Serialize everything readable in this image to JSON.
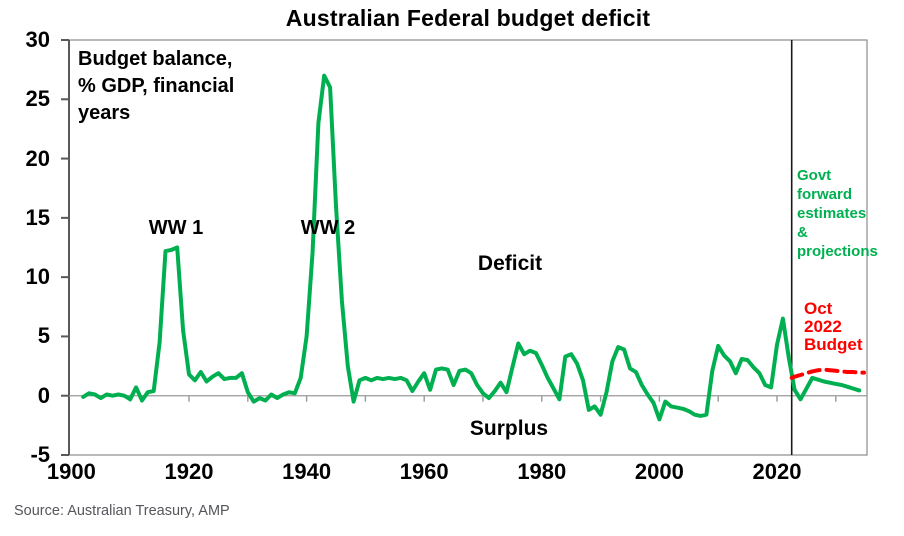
{
  "title": "Australian Federal budget deficit",
  "source": "Source: Australian Treasury, AMP",
  "colors": {
    "series_green": "#00B050",
    "series_red": "#FF0000",
    "divider_line": "#1a1a1a",
    "frame": "#8C8C8C",
    "axis_spine": "#595959",
    "zero_line": "#999999",
    "source_text": "#54565B"
  },
  "annotations": {
    "budget_note": "Budget balance,\n% GDP, financial\nyears",
    "ww1": "WW 1",
    "ww2": "WW 2",
    "deficit": "Deficit",
    "surplus": "Surplus",
    "govt_note": "Govt\nforward\nestimates\n&\nprojections",
    "oct_budget_note": "Oct\n2022\nBudget"
  },
  "chart_data": {
    "type": "line",
    "title": "Australian Federal budget deficit",
    "note": "Budget balance, % GDP, financial years",
    "xlim": [
      1897.8,
      2035.3
    ],
    "ylim": [
      -5,
      30
    ],
    "y_ticks": [
      30,
      25,
      20,
      15,
      10,
      5,
      0,
      -5
    ],
    "x_ticks": [
      1900,
      1920,
      1940,
      1960,
      1980,
      2000,
      2020
    ],
    "x_minor_ticks_on_zero_line": [
      1910,
      1920,
      1930,
      1940,
      1950,
      1960,
      1970,
      1980,
      1990,
      2000,
      2010,
      2020,
      2030
    ],
    "grid": "zero line only",
    "legend_position": "in-plot text annotations",
    "vline": {
      "x": 2022.5,
      "meaning": "start of Govt forward estimates & projections"
    },
    "series": [
      {
        "name": "Budget balance (actual, then govt forward estimates & projections)",
        "color": "#00B050",
        "line_style": "solid",
        "points": [
          [
            1902,
            -0.1
          ],
          [
            1903,
            0.2
          ],
          [
            1904,
            0.1
          ],
          [
            1905,
            -0.2
          ],
          [
            1906,
            0.1
          ],
          [
            1907,
            0.0
          ],
          [
            1908,
            0.1
          ],
          [
            1909,
            0.0
          ],
          [
            1910,
            -0.3
          ],
          [
            1911,
            0.7
          ],
          [
            1912,
            -0.4
          ],
          [
            1913,
            0.3
          ],
          [
            1914,
            0.4
          ],
          [
            1915,
            4.5
          ],
          [
            1916,
            12.2
          ],
          [
            1917,
            12.3
          ],
          [
            1918,
            12.5
          ],
          [
            1919,
            5.5
          ],
          [
            1920,
            1.8
          ],
          [
            1921,
            1.3
          ],
          [
            1922,
            2.0
          ],
          [
            1923,
            1.2
          ],
          [
            1924,
            1.6
          ],
          [
            1925,
            1.9
          ],
          [
            1926,
            1.4
          ],
          [
            1927,
            1.5
          ],
          [
            1928,
            1.5
          ],
          [
            1929,
            1.9
          ],
          [
            1930,
            0.3
          ],
          [
            1931,
            -0.5
          ],
          [
            1932,
            -0.2
          ],
          [
            1933,
            -0.4
          ],
          [
            1934,
            0.1
          ],
          [
            1935,
            -0.2
          ],
          [
            1936,
            0.1
          ],
          [
            1937,
            0.3
          ],
          [
            1938,
            0.2
          ],
          [
            1939,
            1.5
          ],
          [
            1940,
            5.0
          ],
          [
            1941,
            12.0
          ],
          [
            1942,
            23.0
          ],
          [
            1943,
            27.0
          ],
          [
            1944,
            26.0
          ],
          [
            1945,
            16.0
          ],
          [
            1946,
            8.0
          ],
          [
            1947,
            2.5
          ],
          [
            1948,
            -0.5
          ],
          [
            1949,
            1.3
          ],
          [
            1950,
            1.5
          ],
          [
            1951,
            1.3
          ],
          [
            1952,
            1.5
          ],
          [
            1953,
            1.4
          ],
          [
            1954,
            1.5
          ],
          [
            1955,
            1.4
          ],
          [
            1956,
            1.5
          ],
          [
            1957,
            1.3
          ],
          [
            1958,
            0.4
          ],
          [
            1959,
            1.2
          ],
          [
            1960,
            1.9
          ],
          [
            1961,
            0.5
          ],
          [
            1962,
            2.2
          ],
          [
            1963,
            2.3
          ],
          [
            1964,
            2.2
          ],
          [
            1965,
            0.9
          ],
          [
            1966,
            2.1
          ],
          [
            1967,
            2.2
          ],
          [
            1968,
            1.9
          ],
          [
            1969,
            0.9
          ],
          [
            1970,
            0.2
          ],
          [
            1971,
            -0.2
          ],
          [
            1972,
            0.4
          ],
          [
            1973,
            1.1
          ],
          [
            1974,
            0.3
          ],
          [
            1975,
            2.4
          ],
          [
            1976,
            4.4
          ],
          [
            1977,
            3.5
          ],
          [
            1978,
            3.8
          ],
          [
            1979,
            3.6
          ],
          [
            1980,
            2.6
          ],
          [
            1981,
            1.5
          ],
          [
            1982,
            0.6
          ],
          [
            1983,
            -0.3
          ],
          [
            1984,
            3.3
          ],
          [
            1985,
            3.5
          ],
          [
            1986,
            2.7
          ],
          [
            1987,
            1.3
          ],
          [
            1988,
            -1.2
          ],
          [
            1989,
            -0.9
          ],
          [
            1990,
            -1.6
          ],
          [
            1991,
            0.3
          ],
          [
            1992,
            2.9
          ],
          [
            1993,
            4.1
          ],
          [
            1994,
            3.9
          ],
          [
            1995,
            2.3
          ],
          [
            1996,
            2.0
          ],
          [
            1997,
            0.9
          ],
          [
            1998,
            0.1
          ],
          [
            1999,
            -0.6
          ],
          [
            2000,
            -2.0
          ],
          [
            2001,
            -0.5
          ],
          [
            2002,
            -0.9
          ],
          [
            2003,
            -1.0
          ],
          [
            2004,
            -1.1
          ],
          [
            2005,
            -1.3
          ],
          [
            2006,
            -1.6
          ],
          [
            2007,
            -1.7
          ],
          [
            2008,
            -1.6
          ],
          [
            2009,
            2.1
          ],
          [
            2010,
            4.2
          ],
          [
            2011,
            3.4
          ],
          [
            2012,
            2.9
          ],
          [
            2013,
            1.9
          ],
          [
            2014,
            3.1
          ],
          [
            2015,
            3.0
          ],
          [
            2016,
            2.4
          ],
          [
            2017,
            1.9
          ],
          [
            2018,
            0.9
          ],
          [
            2019,
            0.7
          ],
          [
            2020,
            4.3
          ],
          [
            2021,
            6.5
          ],
          [
            2022,
            3.2
          ],
          [
            2023,
            0.5
          ],
          [
            2024,
            -0.3
          ],
          [
            2025,
            0.6
          ],
          [
            2026,
            1.5
          ],
          [
            2027,
            1.35
          ],
          [
            2028,
            1.2
          ],
          [
            2029,
            1.1
          ],
          [
            2030,
            1.0
          ],
          [
            2031,
            0.9
          ],
          [
            2032,
            0.75
          ],
          [
            2033,
            0.6
          ],
          [
            2034,
            0.45
          ]
        ]
      },
      {
        "name": "Oct 2022 Budget",
        "color": "#FF0000",
        "line_style": "dashed",
        "points": [
          [
            2022.5,
            1.5
          ],
          [
            2023,
            1.6
          ],
          [
            2024,
            1.75
          ],
          [
            2025,
            1.9
          ],
          [
            2026,
            2.05
          ],
          [
            2027,
            2.15
          ],
          [
            2028,
            2.2
          ],
          [
            2029,
            2.15
          ],
          [
            2030,
            2.1
          ],
          [
            2031,
            2.05
          ],
          [
            2032,
            2.0
          ],
          [
            2033,
            2.0
          ],
          [
            2034,
            1.95
          ],
          [
            2034.8,
            1.95
          ]
        ]
      }
    ],
    "annotations": [
      {
        "text": "Budget balance, % GDP, financial years",
        "x": 1902,
        "y": 29,
        "color": "#000000"
      },
      {
        "text": "WW 1",
        "x": 1917.5,
        "y": 13.8,
        "color": "#000000"
      },
      {
        "text": "WW 2",
        "x": 1943,
        "y": 13.8,
        "color": "#000000"
      },
      {
        "text": "Deficit",
        "x": 1975,
        "y": 10.5,
        "color": "#000000"
      },
      {
        "text": "Surplus",
        "x": 1975,
        "y": -2.6,
        "color": "#000000"
      },
      {
        "text": "Govt forward estimates & projections",
        "x": 2023.5,
        "y": 19,
        "color": "#00B050"
      },
      {
        "text": "Oct 2022 Budget",
        "x": 2024.5,
        "y": 7.8,
        "color": "#FF0000"
      }
    ],
    "source": "Source: Australian Treasury, AMP"
  }
}
